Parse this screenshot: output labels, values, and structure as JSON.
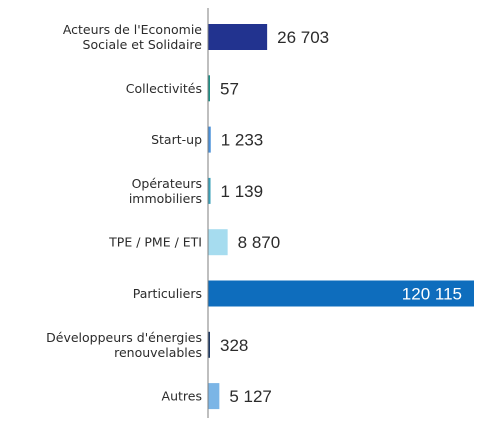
{
  "chart_data": {
    "type": "bar",
    "orientation": "horizontal",
    "title": "",
    "xlabel": "",
    "ylabel": "",
    "grid": false,
    "legend": "none",
    "xlim": [
      0,
      120115
    ],
    "categories": [
      [
        "Acteurs de l'Economie",
        "Sociale et Solidaire"
      ],
      [
        "Collectivités"
      ],
      [
        "Start-up"
      ],
      [
        "Opérateurs",
        "immobiliers"
      ],
      [
        "TPE / PME / ETI"
      ],
      [
        "Particuliers"
      ],
      [
        "Développeurs d'énergies",
        "renouvelables"
      ],
      [
        "Autres"
      ]
    ],
    "values": [
      26703,
      57,
      1233,
      1139,
      8870,
      120115,
      328,
      5127
    ],
    "value_labels": [
      "26 703",
      "57",
      "1 233",
      "1 139",
      "8 870",
      "120 115",
      "328",
      "5 127"
    ],
    "colors": [
      "#22338f",
      "#1d8f86",
      "#4a90d9",
      "#3aa0b8",
      "#a6dcef",
      "#0e6dbd",
      "#1f3a63",
      "#7bb5e6"
    ],
    "axis_color": "#7f7f7f"
  }
}
